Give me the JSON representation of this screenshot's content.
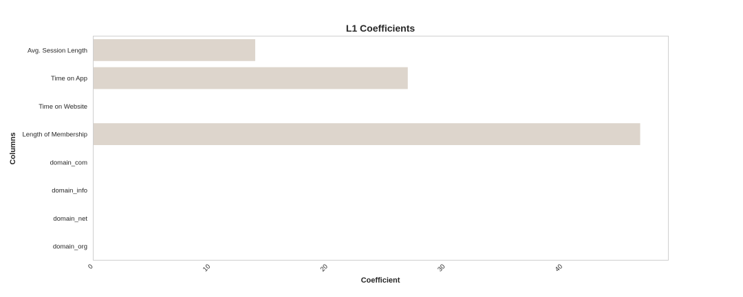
{
  "chart_data": {
    "type": "bar",
    "orientation": "horizontal",
    "title": "L1 Coefficients",
    "xlabel": "Coefficient",
    "ylabel": "Columns",
    "categories": [
      "Avg. Session Length",
      "Time on App",
      "Time on Website",
      "Length of Membership",
      "domain_com",
      "domain_info",
      "domain_net",
      "domain_org"
    ],
    "values": [
      13.8,
      26.8,
      0,
      46.6,
      0,
      0,
      0,
      0
    ],
    "xlim": [
      0,
      49
    ],
    "xticks": [
      "0",
      "10",
      "20",
      "30",
      "40"
    ],
    "bar_color": "#ddd5cc",
    "grid": false
  }
}
